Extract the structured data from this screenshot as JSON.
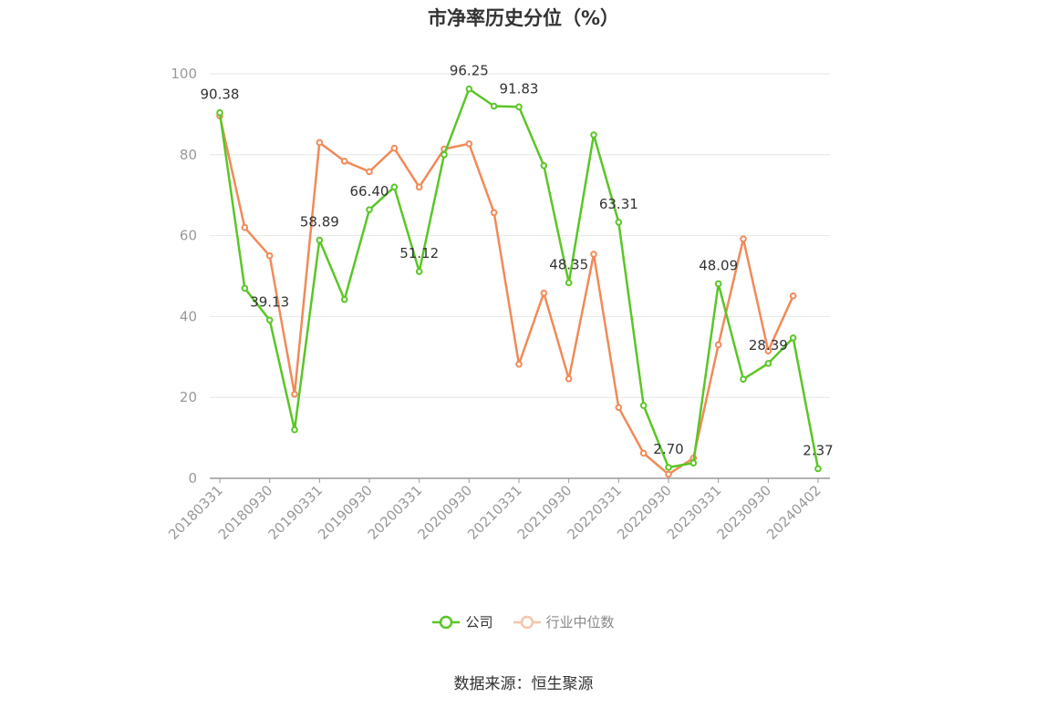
{
  "chart_data": {
    "type": "line",
    "title": "市净率历史分位（%）",
    "ylim": [
      0,
      100
    ],
    "yticks": [
      0,
      20,
      40,
      60,
      80,
      100
    ],
    "xticks": [
      "20180331",
      "20180930",
      "20190331",
      "20190930",
      "20200331",
      "20200930",
      "20210331",
      "20210930",
      "20220331",
      "20220930",
      "20230331",
      "20230930",
      "20240402"
    ],
    "x": [
      "20180331",
      "20180630",
      "20180930",
      "20181231",
      "20190331",
      "20190630",
      "20190930",
      "20191231",
      "20200331",
      "20200630",
      "20200930",
      "20201231",
      "20210331",
      "20210630",
      "20210930",
      "20211231",
      "20220331",
      "20220630",
      "20220930",
      "20221231",
      "20230331",
      "20230630",
      "20230930",
      "20231231",
      "20240402"
    ],
    "series": [
      {
        "name": "公司",
        "color": "#5ac626",
        "values": [
          90.38,
          47.0,
          39.13,
          12.0,
          58.89,
          44.2,
          66.4,
          72.0,
          51.12,
          80.0,
          96.25,
          92.0,
          91.83,
          77.3,
          48.35,
          84.9,
          63.31,
          18.0,
          2.7,
          3.8,
          48.09,
          24.5,
          28.39,
          34.7,
          2.37
        ],
        "labels": {
          "0": "90.38",
          "2": "39.13",
          "4": "58.89",
          "6": "66.40",
          "8": "51.12",
          "10": "96.25",
          "12": "91.83",
          "14": "48.35",
          "16": "63.31",
          "18": "2.70",
          "20": "48.09",
          "22": "28.39",
          "24": "2.37"
        }
      },
      {
        "name": "行业中位数",
        "color": "#f18a58",
        "values": [
          89.6,
          62.0,
          55.0,
          20.8,
          83.0,
          78.4,
          75.8,
          81.6,
          72.0,
          81.4,
          82.7,
          65.7,
          28.2,
          45.8,
          24.6,
          55.4,
          17.5,
          6.2,
          1.0,
          5.0,
          33.0,
          59.2,
          31.5,
          45.1,
          null
        ]
      }
    ],
    "grid": true,
    "legend": "bottom-center"
  },
  "legend": {
    "company": "公司",
    "industry": "行业中位数"
  },
  "source": "数据来源：恒生聚源"
}
